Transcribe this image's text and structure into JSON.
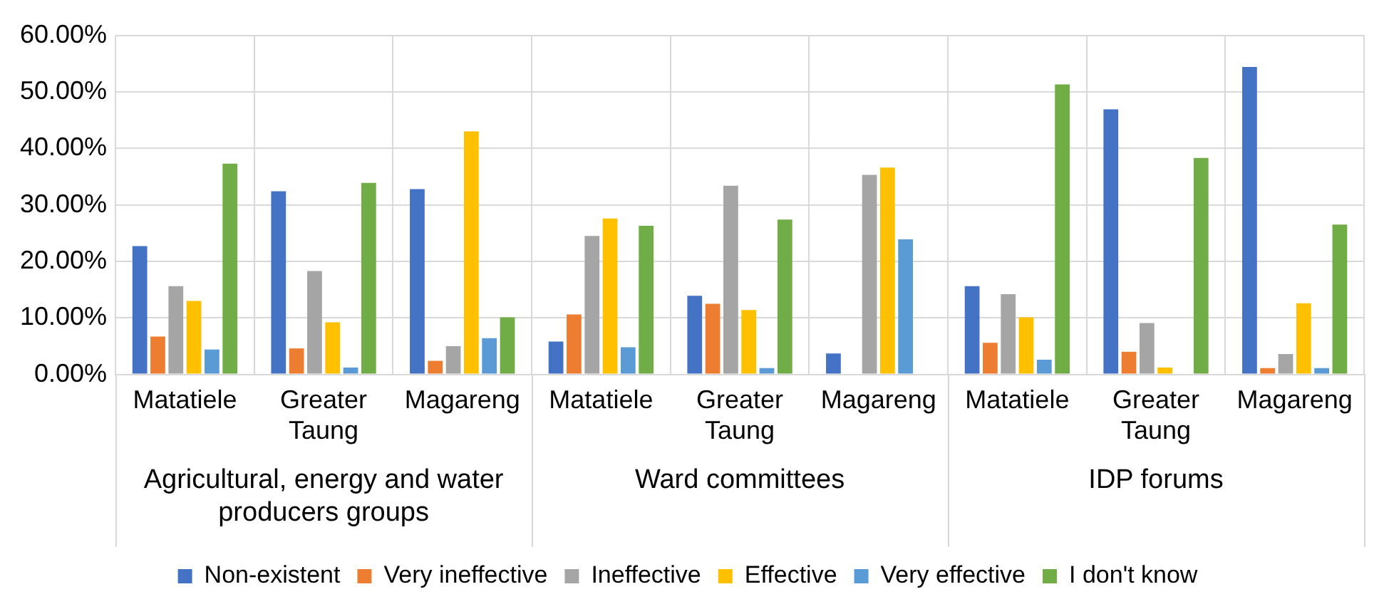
{
  "chart_data": {
    "type": "bar",
    "categories": [
      "Matatiele",
      "Greater Taung",
      "Magareng",
      "Matatiele",
      "Greater Taung",
      "Magareng",
      "Matatiele",
      "Greater Taung",
      "Magareng"
    ],
    "series": [
      {
        "name": "Non-existent",
        "color": "#4472c4",
        "values": [
          22.7,
          32.4,
          32.8,
          5.8,
          13.9,
          3.7,
          15.6,
          46.9,
          54.4
        ]
      },
      {
        "name": "Very ineffective",
        "color": "#ed7d31",
        "values": [
          6.7,
          4.6,
          2.4,
          10.6,
          12.5,
          0,
          5.6,
          4.0,
          1.1
        ]
      },
      {
        "name": "Ineffective",
        "color": "#a5a5a5",
        "values": [
          15.6,
          18.3,
          5.0,
          24.5,
          33.4,
          35.3,
          14.2,
          9.1,
          3.6
        ]
      },
      {
        "name": "Effective",
        "color": "#ffc000",
        "values": [
          13.0,
          9.2,
          43.0,
          27.6,
          11.4,
          36.6,
          10.1,
          1.2,
          12.6
        ]
      },
      {
        "name": "Very effective",
        "color": "#5b9bd5",
        "values": [
          4.4,
          1.2,
          6.4,
          4.8,
          1.1,
          23.9,
          2.6,
          0,
          1.1
        ]
      },
      {
        "name": "I don't know",
        "color": "#70ad47",
        "values": [
          37.3,
          33.9,
          10.1,
          26.3,
          27.4,
          0,
          51.3,
          38.3,
          26.5
        ]
      }
    ],
    "ylim": [
      0,
      60
    ],
    "yticks": [
      {
        "value": 0,
        "label": "0.00%"
      },
      {
        "value": 10,
        "label": "10.00%"
      },
      {
        "value": 20,
        "label": "20.00%"
      },
      {
        "value": 30,
        "label": "30.00%"
      },
      {
        "value": 40,
        "label": "40.00%"
      },
      {
        "value": 50,
        "label": "50.00%"
      },
      {
        "value": 60,
        "label": "60.00%"
      }
    ],
    "annotations": [
      "Agricultural, energy and water producers groups",
      "Ward committees",
      "IDP forums"
    ],
    "grid": true,
    "legend": "bottom"
  }
}
